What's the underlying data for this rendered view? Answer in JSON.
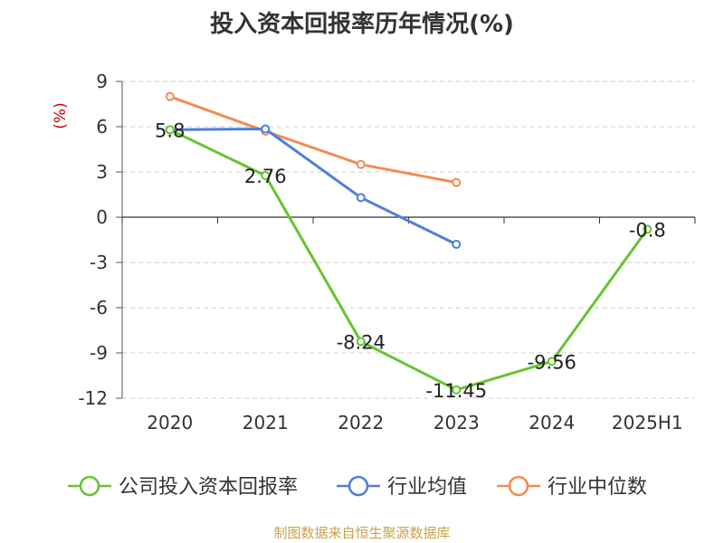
{
  "title": "投入资本回报率历年情况(%)",
  "source": "制图数据来自恒生聚源数据库",
  "colors": {
    "company": "#66c430",
    "industry_avg": "#4f7fd9",
    "industry_median": "#f38b54",
    "axis_unit": "#cc0000"
  },
  "chart_data": {
    "type": "line",
    "title": "投入资本回报率历年情况(%)",
    "ylabel": "(%)",
    "ylim": [
      -12,
      9
    ],
    "yticks": [
      9,
      6,
      3,
      0,
      -3,
      -6,
      -9,
      -12
    ],
    "categories": [
      "2020",
      "2021",
      "2022",
      "2023",
      "2024",
      "2025H1"
    ],
    "grid": true,
    "legend_position": "bottom",
    "series": [
      {
        "name": "公司投入资本回报率",
        "color": "#66c430",
        "values": [
          5.8,
          2.76,
          -8.24,
          -11.45,
          -9.56,
          -0.8
        ],
        "labels": [
          "5.8",
          "2.76",
          "-8.24",
          "-11.45",
          "-9.56",
          "-0.8"
        ]
      },
      {
        "name": "行业均值",
        "color": "#4f7fd9",
        "values": [
          5.8,
          5.85,
          1.3,
          -1.8,
          null,
          null
        ]
      },
      {
        "name": "行业中位数",
        "color": "#f38b54",
        "values": [
          8.0,
          5.7,
          3.5,
          2.3,
          null,
          null
        ]
      }
    ]
  }
}
